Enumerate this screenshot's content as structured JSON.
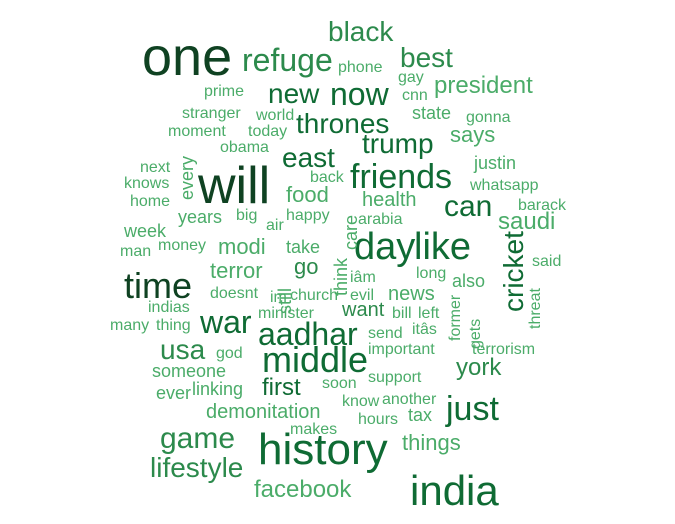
{
  "colors": {
    "darkest": "#0f4222",
    "dark": "#0f6b34",
    "medium": "#2c8a4c",
    "light": "#4bac69"
  },
  "words": [
    {
      "text": "one",
      "color": "darkest"
    },
    {
      "text": "will",
      "color": "darkest"
    },
    {
      "text": "history",
      "color": "dark"
    },
    {
      "text": "india",
      "color": "dark"
    },
    {
      "text": "middle",
      "color": "dark"
    },
    {
      "text": "day",
      "color": "dark"
    },
    {
      "text": "like",
      "color": "dark"
    },
    {
      "text": "time",
      "color": "darkest"
    },
    {
      "text": "friends",
      "color": "dark"
    },
    {
      "text": "war",
      "color": "dark"
    },
    {
      "text": "aadhar",
      "color": "dark"
    },
    {
      "text": "just",
      "color": "dark"
    },
    {
      "text": "cricket",
      "color": "dark"
    },
    {
      "text": "game",
      "color": "medium"
    },
    {
      "text": "now",
      "color": "dark"
    },
    {
      "text": "refuge",
      "color": "medium"
    },
    {
      "text": "new",
      "color": "dark"
    },
    {
      "text": "thrones",
      "color": "dark"
    },
    {
      "text": "trump",
      "color": "dark"
    },
    {
      "text": "east",
      "color": "dark"
    },
    {
      "text": "can",
      "color": "dark"
    },
    {
      "text": "usa",
      "color": "medium"
    },
    {
      "text": "lifestyle",
      "color": "medium"
    },
    {
      "text": "black",
      "color": "medium"
    },
    {
      "text": "best",
      "color": "medium"
    },
    {
      "text": "president",
      "color": "light"
    },
    {
      "text": "saudi",
      "color": "light"
    },
    {
      "text": "facebook",
      "color": "light"
    },
    {
      "text": "first",
      "color": "dark"
    },
    {
      "text": "york",
      "color": "medium"
    },
    {
      "text": "says",
      "color": "light"
    },
    {
      "text": "things",
      "color": "light"
    },
    {
      "text": "food",
      "color": "light"
    },
    {
      "text": "modi",
      "color": "light"
    },
    {
      "text": "terror",
      "color": "light"
    },
    {
      "text": "go",
      "color": "medium"
    },
    {
      "text": "want",
      "color": "medium"
    },
    {
      "text": "news",
      "color": "light"
    },
    {
      "text": "health",
      "color": "light"
    },
    {
      "text": "demonitation",
      "color": "light"
    },
    {
      "text": "someone",
      "color": "light"
    },
    {
      "text": "ever",
      "color": "light"
    },
    {
      "text": "linking",
      "color": "light"
    },
    {
      "text": "years",
      "color": "light"
    },
    {
      "text": "week",
      "color": "light"
    },
    {
      "text": "justin",
      "color": "light"
    },
    {
      "text": "also",
      "color": "light"
    },
    {
      "text": "state",
      "color": "light"
    },
    {
      "text": "tax",
      "color": "light"
    },
    {
      "text": "take",
      "color": "light"
    },
    {
      "text": "think",
      "color": "light"
    },
    {
      "text": "care",
      "color": "light"
    },
    {
      "text": "still",
      "color": "light"
    },
    {
      "text": "every",
      "color": "light"
    },
    {
      "text": "terrorism",
      "color": "light"
    },
    {
      "text": "support",
      "color": "light"
    },
    {
      "text": "important",
      "color": "light"
    },
    {
      "text": "hours",
      "color": "light"
    },
    {
      "text": "know",
      "color": "light"
    },
    {
      "text": "another",
      "color": "light"
    },
    {
      "text": "soon",
      "color": "light"
    },
    {
      "text": "makes",
      "color": "light"
    },
    {
      "text": "god",
      "color": "light"
    },
    {
      "text": "minister",
      "color": "light"
    },
    {
      "text": "send",
      "color": "light"
    },
    {
      "text": "bill",
      "color": "light"
    },
    {
      "text": "left",
      "color": "light"
    },
    {
      "text": "itâs",
      "color": "light"
    },
    {
      "text": "evil",
      "color": "light"
    },
    {
      "text": "iâm",
      "color": "light"
    },
    {
      "text": "church",
      "color": "light"
    },
    {
      "text": "doesnt",
      "color": "light"
    },
    {
      "text": "im",
      "color": "light"
    },
    {
      "text": "long",
      "color": "light"
    },
    {
      "text": "former",
      "color": "light"
    },
    {
      "text": "gets",
      "color": "light"
    },
    {
      "text": "threat",
      "color": "light"
    },
    {
      "text": "said",
      "color": "light"
    },
    {
      "text": "barack",
      "color": "light"
    },
    {
      "text": "whatsapp",
      "color": "light"
    },
    {
      "text": "arabia",
      "color": "light"
    },
    {
      "text": "happy",
      "color": "light"
    },
    {
      "text": "back",
      "color": "light"
    },
    {
      "text": "air",
      "color": "light"
    },
    {
      "text": "big",
      "color": "light"
    },
    {
      "text": "money",
      "color": "light"
    },
    {
      "text": "man",
      "color": "light"
    },
    {
      "text": "indias",
      "color": "light"
    },
    {
      "text": "many",
      "color": "light"
    },
    {
      "text": "thing",
      "color": "light"
    },
    {
      "text": "next",
      "color": "light"
    },
    {
      "text": "knows",
      "color": "light"
    },
    {
      "text": "home",
      "color": "light"
    },
    {
      "text": "obama",
      "color": "light"
    },
    {
      "text": "moment",
      "color": "light"
    },
    {
      "text": "today",
      "color": "light"
    },
    {
      "text": "stranger",
      "color": "light"
    },
    {
      "text": "world",
      "color": "light"
    },
    {
      "text": "prime",
      "color": "light"
    },
    {
      "text": "phone",
      "color": "light"
    },
    {
      "text": "gay",
      "color": "light"
    },
    {
      "text": "cnn",
      "color": "light"
    },
    {
      "text": "gonna",
      "color": "light"
    }
  ]
}
